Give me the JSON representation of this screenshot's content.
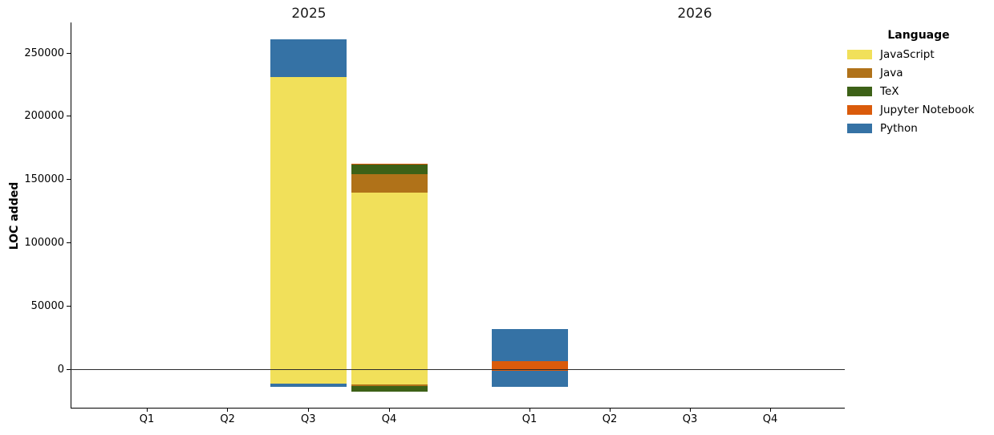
{
  "chart_data": {
    "type": "bar",
    "stacked": true,
    "orientation": "vertical",
    "title": "",
    "facet_by": "year",
    "ylabel": "LOC added",
    "xlabel": "",
    "ylim": [
      -35000,
      278000
    ],
    "yticks": [
      0,
      50000,
      100000,
      150000,
      200000,
      250000
    ],
    "grid": false,
    "zero_line": true,
    "legend": {
      "title": "Language",
      "position": "upper right"
    },
    "facets": [
      {
        "title": "2025",
        "categories": [
          "Q1",
          "Q2",
          "Q3",
          "Q4"
        ],
        "series": [
          {
            "name": "JavaScript",
            "color": "#f1e05a",
            "pos": [
              0,
              0,
              231000,
              140000
            ],
            "neg": [
              0,
              0,
              -11000,
              -12000
            ]
          },
          {
            "name": "Java",
            "color": "#b07219",
            "pos": [
              0,
              0,
              0,
              14000
            ],
            "neg": [
              0,
              0,
              0,
              -1000
            ]
          },
          {
            "name": "TeX",
            "color": "#3d6117",
            "pos": [
              0,
              0,
              0,
              7600
            ],
            "neg": [
              0,
              0,
              0,
              -4700
            ]
          },
          {
            "name": "Jupyter Notebook",
            "color": "#da5b0b",
            "pos": [
              0,
              0,
              0,
              1000
            ],
            "neg": [
              0,
              0,
              0,
              0
            ]
          },
          {
            "name": "Python",
            "color": "#3572a5",
            "pos": [
              0,
              0,
              29500,
              0
            ],
            "neg": [
              0,
              0,
              -2500,
              0
            ]
          }
        ]
      },
      {
        "title": "2026",
        "categories": [
          "Q1",
          "Q2",
          "Q3",
          "Q4"
        ],
        "series": [
          {
            "name": "JavaScript",
            "color": "#f1e05a",
            "pos": [
              0,
              0,
              0,
              0
            ],
            "neg": [
              0,
              0,
              0,
              0
            ]
          },
          {
            "name": "Java",
            "color": "#b07219",
            "pos": [
              0,
              0,
              0,
              0
            ],
            "neg": [
              0,
              0,
              0,
              0
            ]
          },
          {
            "name": "TeX",
            "color": "#3d6117",
            "pos": [
              0,
              0,
              0,
              0
            ],
            "neg": [
              0,
              0,
              0,
              0
            ]
          },
          {
            "name": "Jupyter Notebook",
            "color": "#da5b0b",
            "pos": [
              6600,
              0,
              0,
              0
            ],
            "neg": [
              -1000,
              0,
              0,
              0
            ]
          },
          {
            "name": "Python",
            "color": "#3572a5",
            "pos": [
              25400,
              0,
              0,
              0
            ],
            "neg": [
              -12400,
              0,
              0,
              0
            ]
          }
        ]
      }
    ]
  }
}
